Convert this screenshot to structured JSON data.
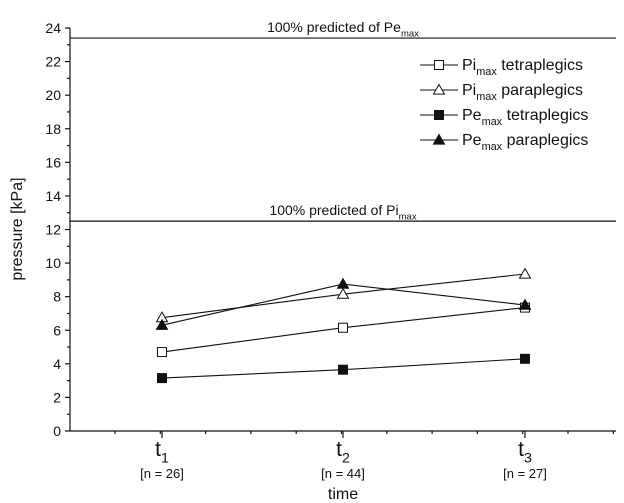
{
  "chart_data": {
    "type": "line",
    "xlabel": "time",
    "ylabel": "pressure [kPa]",
    "ylim": [
      0,
      24
    ],
    "y_ticks": [
      "0",
      "2",
      "4",
      "6",
      "8",
      "10",
      "12",
      "14",
      "16",
      "18",
      "20",
      "22",
      "24"
    ],
    "categories": [
      {
        "symbol": "t",
        "sub": "1",
        "n": "[n = 26]"
      },
      {
        "symbol": "t",
        "sub": "2",
        "n": "[n = 44]"
      },
      {
        "symbol": "t",
        "sub": "3",
        "n": "[n = 27]"
      }
    ],
    "reference_lines": [
      {
        "value": 23.4,
        "label": "100% predicted of Pe",
        "sub": "max"
      },
      {
        "value": 12.5,
        "label": "100% predicted of Pi",
        "sub": "max"
      }
    ],
    "series": [
      {
        "name": "Pi",
        "sub": "max",
        "suffix": " tetraplegics",
        "marker": "square-open",
        "values": [
          4.7,
          6.15,
          7.35
        ]
      },
      {
        "name": "Pi",
        "sub": "max",
        "suffix": " paraplegics",
        "marker": "triangle-open",
        "values": [
          6.75,
          8.15,
          9.35
        ]
      },
      {
        "name": "Pe",
        "sub": "max",
        "suffix": " tetraplegics",
        "marker": "square-filled",
        "values": [
          3.15,
          3.65,
          4.3
        ]
      },
      {
        "name": "Pe",
        "sub": "max",
        "suffix": " paraplegics",
        "marker": "triangle-filled",
        "values": [
          6.3,
          8.75,
          7.5
        ]
      }
    ],
    "legend_position": "top-right",
    "grid": false
  }
}
